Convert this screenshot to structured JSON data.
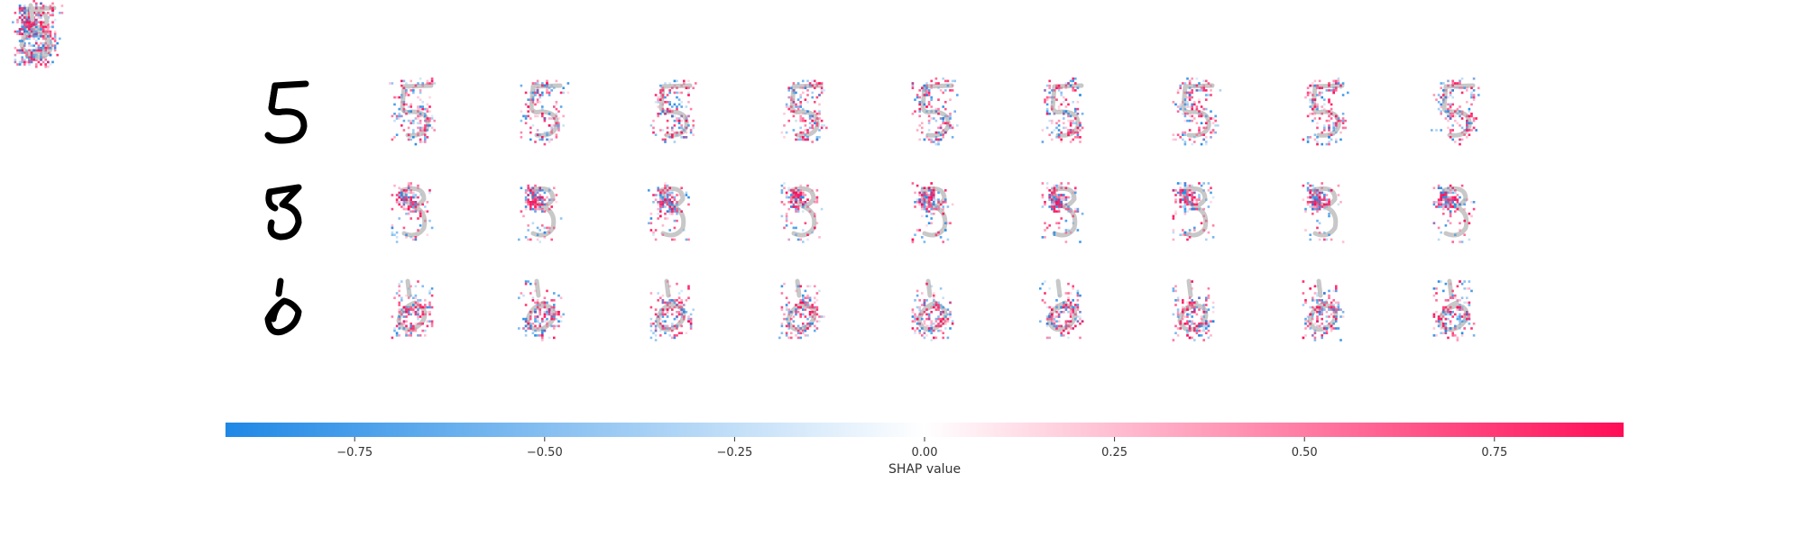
{
  "chart_data": {
    "type": "heatmap",
    "title": "",
    "description_kind": "shap_image_plot",
    "rows": [
      {
        "input_digit": "5",
        "n_explanations": 10
      },
      {
        "input_digit": "3",
        "n_explanations": 10
      },
      {
        "input_digit": "6",
        "n_explanations": 10
      }
    ],
    "colorbar": {
      "label": "SHAP value",
      "range": [
        -0.92,
        0.92
      ],
      "ticks": [
        -0.75,
        -0.5,
        -0.25,
        0.0,
        0.25,
        0.5,
        0.75
      ],
      "tick_labels": [
        "−0.75",
        "−0.50",
        "−0.25",
        "0.00",
        "0.25",
        "0.50",
        "0.75"
      ],
      "colors": {
        "negative": "#1E88E5",
        "zero": "#FFFFFF",
        "positive": "#FF0D57"
      }
    }
  }
}
